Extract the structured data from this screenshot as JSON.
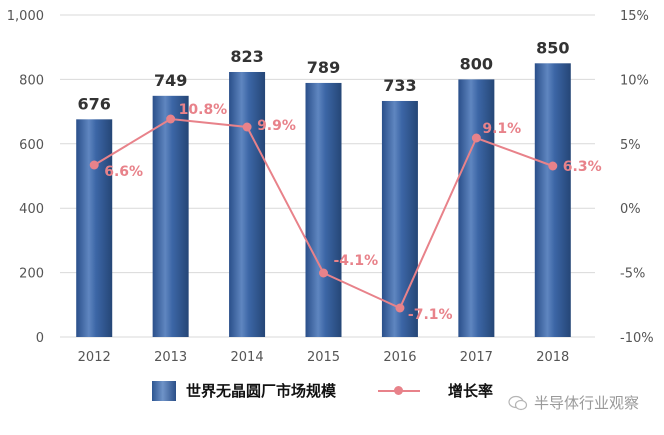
{
  "chart_data": {
    "type": "bar+line",
    "title": "",
    "categories": [
      "2012",
      "2013",
      "2014",
      "2015",
      "2016",
      "2017",
      "2018"
    ],
    "series": [
      {
        "name": "世界无晶圆厂市场规模",
        "type": "bar",
        "axis": "left",
        "values": [
          676,
          749,
          823,
          789,
          733,
          800,
          850
        ],
        "labels": [
          "676",
          "749",
          "823",
          "789",
          "733",
          "800",
          "850"
        ],
        "color": "#2F5A96"
      },
      {
        "name": "增长率",
        "type": "line",
        "axis": "right",
        "values": [
          6.6,
          10.8,
          9.9,
          -4.1,
          -7.1,
          9.1,
          6.3
        ],
        "labels": [
          "6.6%",
          "10.8%",
          "9.9%",
          "-4.1%",
          "-7.1%",
          "9.1%",
          "6.3%"
        ],
        "color": "#E8828A"
      }
    ],
    "left_axis": {
      "ylim": [
        0,
        1000
      ],
      "ticks": [
        "0",
        "200",
        "400",
        "600",
        "800",
        "1,000"
      ]
    },
    "right_axis": {
      "ylim": [
        -10,
        15
      ],
      "ticks": [
        "-10%",
        "-5%",
        "0%",
        "5%",
        "10%",
        "15%"
      ]
    },
    "xlabel": "",
    "ylabel": "",
    "grid": true,
    "legend_position": "bottom"
  },
  "legend": {
    "bar_label": "世界无晶圆厂市场规模",
    "line_label": "增长率"
  },
  "watermark": {
    "text": "半导体行业观察"
  }
}
